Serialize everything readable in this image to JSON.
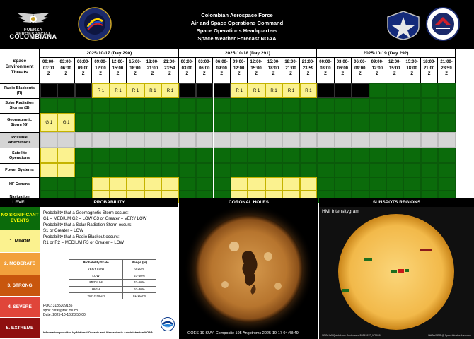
{
  "header": {
    "title_lines": [
      "Colombian Aerospace Force",
      "Air and Space Operations Command",
      "Space Operations Headquarters",
      "Space Weather Forecast NOAA"
    ],
    "fac_logo_top": "FUERZA AEROESPACIAL",
    "fac_logo_bottom": "COLOMBIANA"
  },
  "grid": {
    "threats_header": "Space Environment Threats",
    "days": [
      {
        "label": "2025-10-17 (Day 290)"
      },
      {
        "label": "2025-10-18 (Day 291)"
      },
      {
        "label": "2025-10-19 (Day 292)"
      }
    ],
    "slots": [
      {
        "from": "00:00-",
        "to": "03:00",
        "z": "Z"
      },
      {
        "from": "03:00-",
        "to": "06:00",
        "z": "Z"
      },
      {
        "from": "06:00-",
        "to": "09:00",
        "z": "Z"
      },
      {
        "from": "09:00-",
        "to": "12:00",
        "z": "Z"
      },
      {
        "from": "12:00-",
        "to": "15:00",
        "z": "Z"
      },
      {
        "from": "15:00-",
        "to": "18:00",
        "z": "Z"
      },
      {
        "from": "18:00-",
        "to": "21:00",
        "z": "Z"
      },
      {
        "from": "21:00-",
        "to": "23:59",
        "z": "Z"
      }
    ],
    "rows": [
      {
        "label": "Radio Blackouts (R)",
        "cells": [
          "B",
          "B",
          "B",
          "Y:R 1",
          "Y:R 1",
          "Y:R 1",
          "Y:R 1",
          "Y:R 1",
          "B",
          "B",
          "B",
          "Y:R 1",
          "Y:R 1",
          "Y:R 1",
          "Y:R 1",
          "Y:R 1",
          "B",
          "B",
          "B",
          "G",
          "G",
          "G",
          "G",
          "G"
        ]
      },
      {
        "label": "Solar Radiation Storms (S)",
        "cells": [
          "G",
          "G",
          "G",
          "G",
          "G",
          "G",
          "G",
          "G",
          "G",
          "G",
          "G",
          "G",
          "G",
          "G",
          "G",
          "G",
          "G",
          "G",
          "G",
          "G",
          "G",
          "G",
          "G",
          "G"
        ]
      },
      {
        "label": "Geomagnetic Storm (G)",
        "cells": [
          "Y:G 1",
          "Y:G 1",
          "G",
          "G",
          "G",
          "G",
          "G",
          "G",
          "G",
          "G",
          "G",
          "G",
          "G",
          "G",
          "G",
          "G",
          "G",
          "G",
          "G",
          "G",
          "G",
          "G",
          "G",
          "G"
        ]
      },
      {
        "label": "Possible Affectations",
        "cells": [
          "X",
          "X",
          "X",
          "X",
          "X",
          "X",
          "X",
          "X",
          "X",
          "X",
          "X",
          "X",
          "X",
          "X",
          "X",
          "X",
          "X",
          "X",
          "X",
          "X",
          "X",
          "X",
          "X",
          "X"
        ]
      },
      {
        "label": "Satellite Operations",
        "cells": [
          "Y",
          "Y",
          "G",
          "G",
          "G",
          "G",
          "G",
          "G",
          "G",
          "G",
          "G",
          "G",
          "G",
          "G",
          "G",
          "G",
          "G",
          "G",
          "G",
          "G",
          "G",
          "G",
          "G",
          "G"
        ]
      },
      {
        "label": "Power Systems",
        "cells": [
          "Y",
          "Y",
          "G",
          "G",
          "G",
          "G",
          "G",
          "G",
          "G",
          "G",
          "G",
          "G",
          "G",
          "G",
          "G",
          "G",
          "G",
          "G",
          "G",
          "G",
          "G",
          "G",
          "G",
          "G"
        ]
      },
      {
        "label": "HF Comms",
        "cells": [
          "G",
          "G",
          "G",
          "Y",
          "Y",
          "Y",
          "Y",
          "Y",
          "G",
          "G",
          "G",
          "Y",
          "Y",
          "Y",
          "Y",
          "Y",
          "G",
          "G",
          "G",
          "G",
          "G",
          "G",
          "G",
          "G"
        ]
      },
      {
        "label": "Navigation",
        "cells": [
          "G",
          "G",
          "G",
          "Y",
          "Y",
          "Y",
          "Y",
          "Y",
          "G",
          "G",
          "G",
          "Y",
          "Y",
          "Y",
          "Y",
          "Y",
          "G",
          "G",
          "G",
          "G",
          "G",
          "G",
          "G",
          "G"
        ]
      }
    ]
  },
  "colors": {
    "green": "#0b6b0b",
    "yellow": "#fbf28f",
    "black": "#000000",
    "gray": "#d5d5d5"
  },
  "sections": {
    "level": "LEVEL",
    "probability": "PROBABILITY",
    "coronal": "CORONAL HOLES",
    "sunspots": "SUNSPOTS REGIONS"
  },
  "levels": [
    {
      "label": "NO SIGNIFICANT EVENTS",
      "bg": "#0b6b0b",
      "fg": "#ffff00"
    },
    {
      "label": "1. MINOR",
      "bg": "#fbf28f",
      "fg": "#000000"
    },
    {
      "label": "2. MODERATE",
      "bg": "#f2a13c",
      "fg": "#ffffff"
    },
    {
      "label": "3. STRONG",
      "bg": "#c8560d",
      "fg": "#ffffff"
    },
    {
      "label": "4. SEVERE",
      "bg": "#e0453a",
      "fg": "#ffffff"
    },
    {
      "label": "5. EXTREME",
      "bg": "#8e1010",
      "fg": "#ffffff"
    }
  ],
  "probability": {
    "lines": [
      "Probability that a Geomagnetic Storm occurs:",
      "G1 = MEDIUM    G2 = LOW    G3 or Greater = VERY LOW",
      "Probability that a Solar Radiation Storm occurs:",
      "S1 or Greater = LOW",
      "Probability that a Radio Blackout occurs:",
      "R1 or R2 = MEDIUM   R3 or Greater = LOW"
    ],
    "table_headers": [
      "Probability Scale",
      "Range (%)"
    ],
    "table_rows": [
      [
        "VERY LOW",
        "0-20%"
      ],
      [
        "LOW",
        "21-40%"
      ],
      [
        "MEDIUM",
        "41-60%"
      ],
      [
        "HIGH",
        "61-80%"
      ],
      [
        "VERY HIGH",
        "81-100%"
      ]
    ],
    "poc_lines": [
      "POC: 3185309135",
      "spoc.cotaf@fac.mil.co",
      "Date: 2025-10-16 23:50:00"
    ],
    "noaa_note": "Information provided by National Oceanic and Atmospheric Administration NOAA",
    "noaa_logo_text": "NOAA"
  },
  "coronal": {
    "caption": "GOES-19 SUVI Composite 195 Angstroms 2025-10-17 04:48:49"
  },
  "sunspots": {
    "title": "HMI Intensitygram",
    "caption_left": "SDO/HMI Quick-Look Continuum: 20251017_173000",
    "caption_right": "NASA/SDO @ SpaceWeatherLive.com"
  }
}
